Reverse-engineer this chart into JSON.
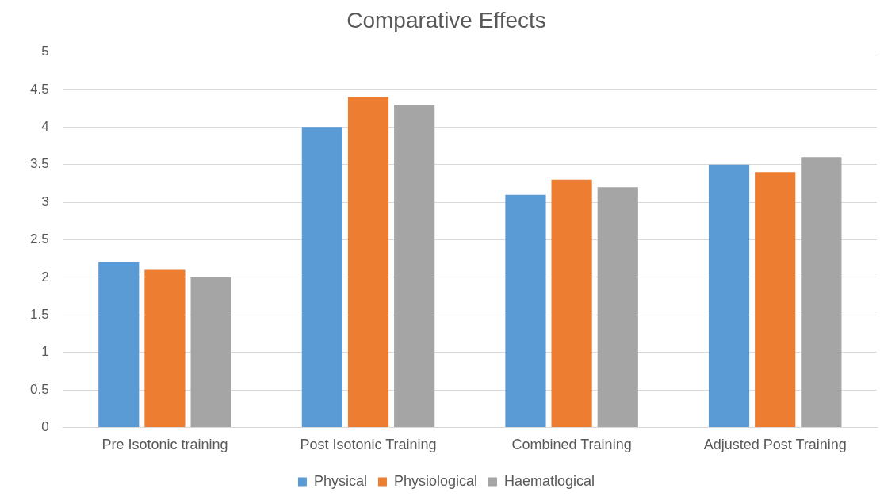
{
  "chart_data": {
    "type": "bar",
    "title": "Comparative Effects",
    "categories": [
      "Pre Isotonic training",
      "Post Isotonic Training",
      "Combined Training",
      "Adjusted Post Training"
    ],
    "series": [
      {
        "name": "Physical",
        "color": "#5b9bd5",
        "values": [
          2.2,
          4.0,
          3.1,
          3.5
        ]
      },
      {
        "name": "Physiological",
        "color": "#ed7d31",
        "values": [
          2.1,
          4.4,
          3.3,
          3.4
        ]
      },
      {
        "name": "Haematlogical",
        "color": "#a5a5a5",
        "values": [
          2.0,
          4.3,
          3.2,
          3.6
        ]
      }
    ],
    "ylim": [
      0,
      5
    ],
    "yticks": [
      0,
      0.5,
      1,
      1.5,
      2,
      2.5,
      3,
      3.5,
      4,
      4.5,
      5
    ],
    "grid": "y",
    "legend": "bottom"
  }
}
